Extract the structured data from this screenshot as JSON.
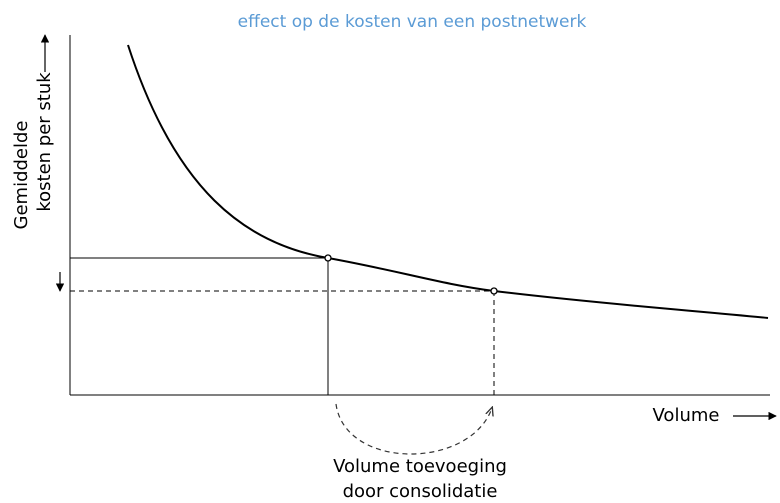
{
  "title": "effect op de kosten van een postnetwerk",
  "y_axis_label": [
    "Gemiddelde",
    "kosten per stuk"
  ],
  "x_axis_label": "Volume",
  "annotation": [
    "Volume toevoeging",
    "door consolidatie"
  ]
}
